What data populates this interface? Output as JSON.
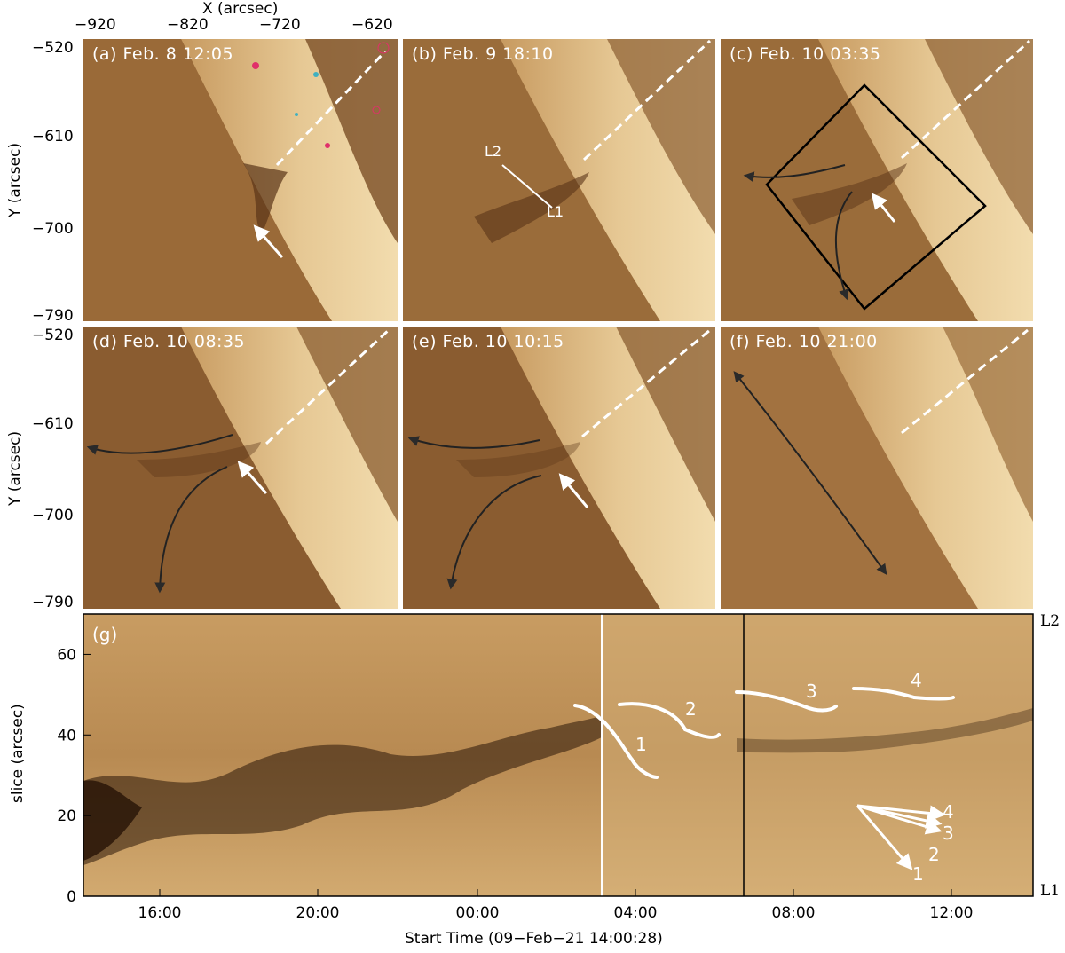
{
  "top_axis": {
    "title": "X (arcsec)",
    "ticks": [
      "−920",
      "−820",
      "−720",
      "−620"
    ]
  },
  "y_axis": {
    "title": "Y (arcsec)",
    "ticks": [
      "−520",
      "−610",
      "−700",
      "−790"
    ]
  },
  "panels": [
    {
      "label": "(a) Feb. 8 12:05"
    },
    {
      "label": "(b) Feb. 9 18:10"
    },
    {
      "label": "(c) Feb. 10 03:35"
    },
    {
      "label": "(d) Feb. 10 08:35"
    },
    {
      "label": "(e) Feb. 10 10:15"
    },
    {
      "label": "(f) Feb. 10 21:00"
    }
  ],
  "slit_labels": {
    "l2": "L2",
    "l1": "L1"
  },
  "chart_data": {
    "type": "heatmap",
    "panel_label": "(g)",
    "xlabel": "Start Time (09−Feb−21 14:00:28)",
    "ylabel": "slice (arcsec)",
    "x_ticks": [
      "16:00",
      "20:00",
      "00:00",
      "04:00",
      "08:00",
      "12:00"
    ],
    "y_ticks": [
      "0",
      "20",
      "40",
      "60"
    ],
    "ylim": [
      0,
      70
    ],
    "right_labels": {
      "top": "L2",
      "bottom": "L1"
    },
    "track_numbers": [
      "1",
      "2",
      "3",
      "4"
    ],
    "legend_numbers": [
      "4",
      "3",
      "2",
      "1"
    ],
    "colors": {
      "dark": "#2a1608",
      "mid": "#9a6a36",
      "light": "#d8b47c",
      "white": "#ffffff"
    }
  }
}
